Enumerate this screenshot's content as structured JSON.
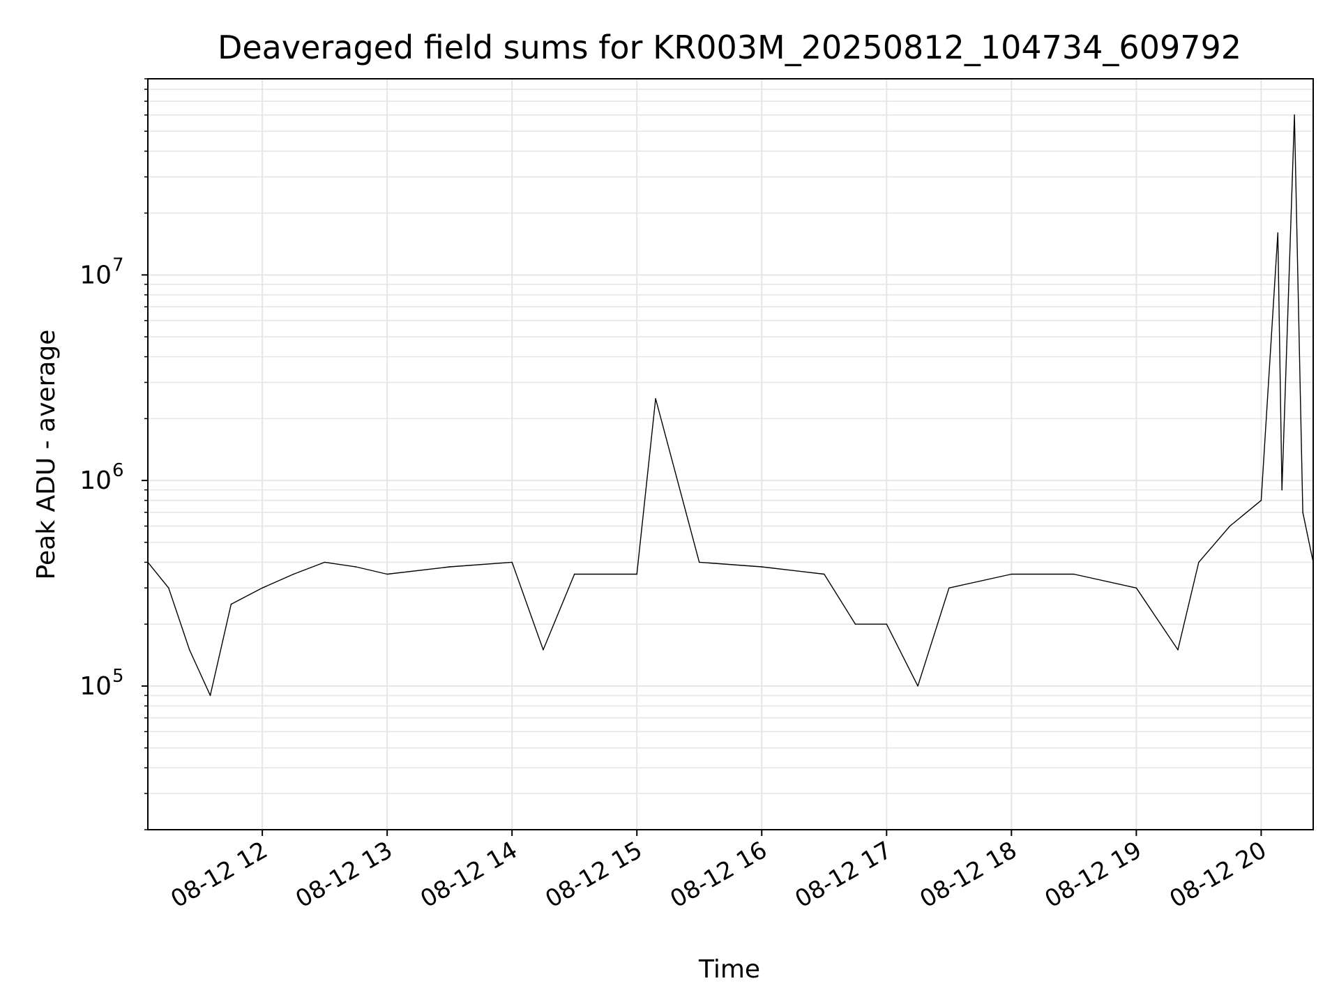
{
  "chart_data": {
    "type": "line",
    "title": "Deaveraged field sums for KR003M_20250812_104734_609792",
    "xlabel": "Time",
    "ylabel": "Peak ADU - average",
    "x_range": [
      "2025-08-12T11:05",
      "2025-08-12T20:25"
    ],
    "x_ticks": [
      {
        "t": "2025-08-12T12:00",
        "label": "08-12 12"
      },
      {
        "t": "2025-08-12T13:00",
        "label": "08-12 13"
      },
      {
        "t": "2025-08-12T14:00",
        "label": "08-12 14"
      },
      {
        "t": "2025-08-12T15:00",
        "label": "08-12 15"
      },
      {
        "t": "2025-08-12T16:00",
        "label": "08-12 16"
      },
      {
        "t": "2025-08-12T17:00",
        "label": "08-12 17"
      },
      {
        "t": "2025-08-12T18:00",
        "label": "08-12 18"
      },
      {
        "t": "2025-08-12T19:00",
        "label": "08-12 19"
      },
      {
        "t": "2025-08-12T20:00",
        "label": "08-12 20"
      }
    ],
    "yscale": "log",
    "ylim": [
      20000,
      90000000
    ],
    "y_ticks": [
      {
        "value": 100000,
        "base": "10",
        "exp": "5"
      },
      {
        "value": 1000000,
        "base": "10",
        "exp": "6"
      },
      {
        "value": 10000000,
        "base": "10",
        "exp": "7"
      }
    ],
    "grid": true,
    "line_color": "#000000",
    "grid_color": "#e6e6e6",
    "series": [
      {
        "points": [
          [
            "2025-08-12T11:05",
            400000
          ],
          [
            "2025-08-12T11:15",
            300000
          ],
          [
            "2025-08-12T11:25",
            150000
          ],
          [
            "2025-08-12T11:35",
            90000
          ],
          [
            "2025-08-12T11:45",
            250000
          ],
          [
            "2025-08-12T12:00",
            300000
          ],
          [
            "2025-08-12T12:15",
            350000
          ],
          [
            "2025-08-12T12:30",
            400000
          ],
          [
            "2025-08-12T12:45",
            380000
          ],
          [
            "2025-08-12T13:00",
            350000
          ],
          [
            "2025-08-12T13:30",
            380000
          ],
          [
            "2025-08-12T14:00",
            400000
          ],
          [
            "2025-08-12T14:15",
            150000
          ],
          [
            "2025-08-12T14:30",
            350000
          ],
          [
            "2025-08-12T15:00",
            350000
          ],
          [
            "2025-08-12T15:09",
            2500000
          ],
          [
            "2025-08-12T15:30",
            400000
          ],
          [
            "2025-08-12T16:00",
            380000
          ],
          [
            "2025-08-12T16:30",
            350000
          ],
          [
            "2025-08-12T16:45",
            200000
          ],
          [
            "2025-08-12T17:00",
            200000
          ],
          [
            "2025-08-12T17:15",
            100000
          ],
          [
            "2025-08-12T17:30",
            300000
          ],
          [
            "2025-08-12T18:00",
            350000
          ],
          [
            "2025-08-12T18:30",
            350000
          ],
          [
            "2025-08-12T19:00",
            300000
          ],
          [
            "2025-08-12T19:20",
            150000
          ],
          [
            "2025-08-12T19:30",
            400000
          ],
          [
            "2025-08-12T19:45",
            600000
          ],
          [
            "2025-08-12T20:00",
            800000
          ],
          [
            "2025-08-12T20:08",
            16000000
          ],
          [
            "2025-08-12T20:10",
            900000
          ],
          [
            "2025-08-12T20:16",
            60000000
          ],
          [
            "2025-08-12T20:20",
            700000
          ],
          [
            "2025-08-12T20:25",
            400000
          ]
        ]
      }
    ]
  }
}
